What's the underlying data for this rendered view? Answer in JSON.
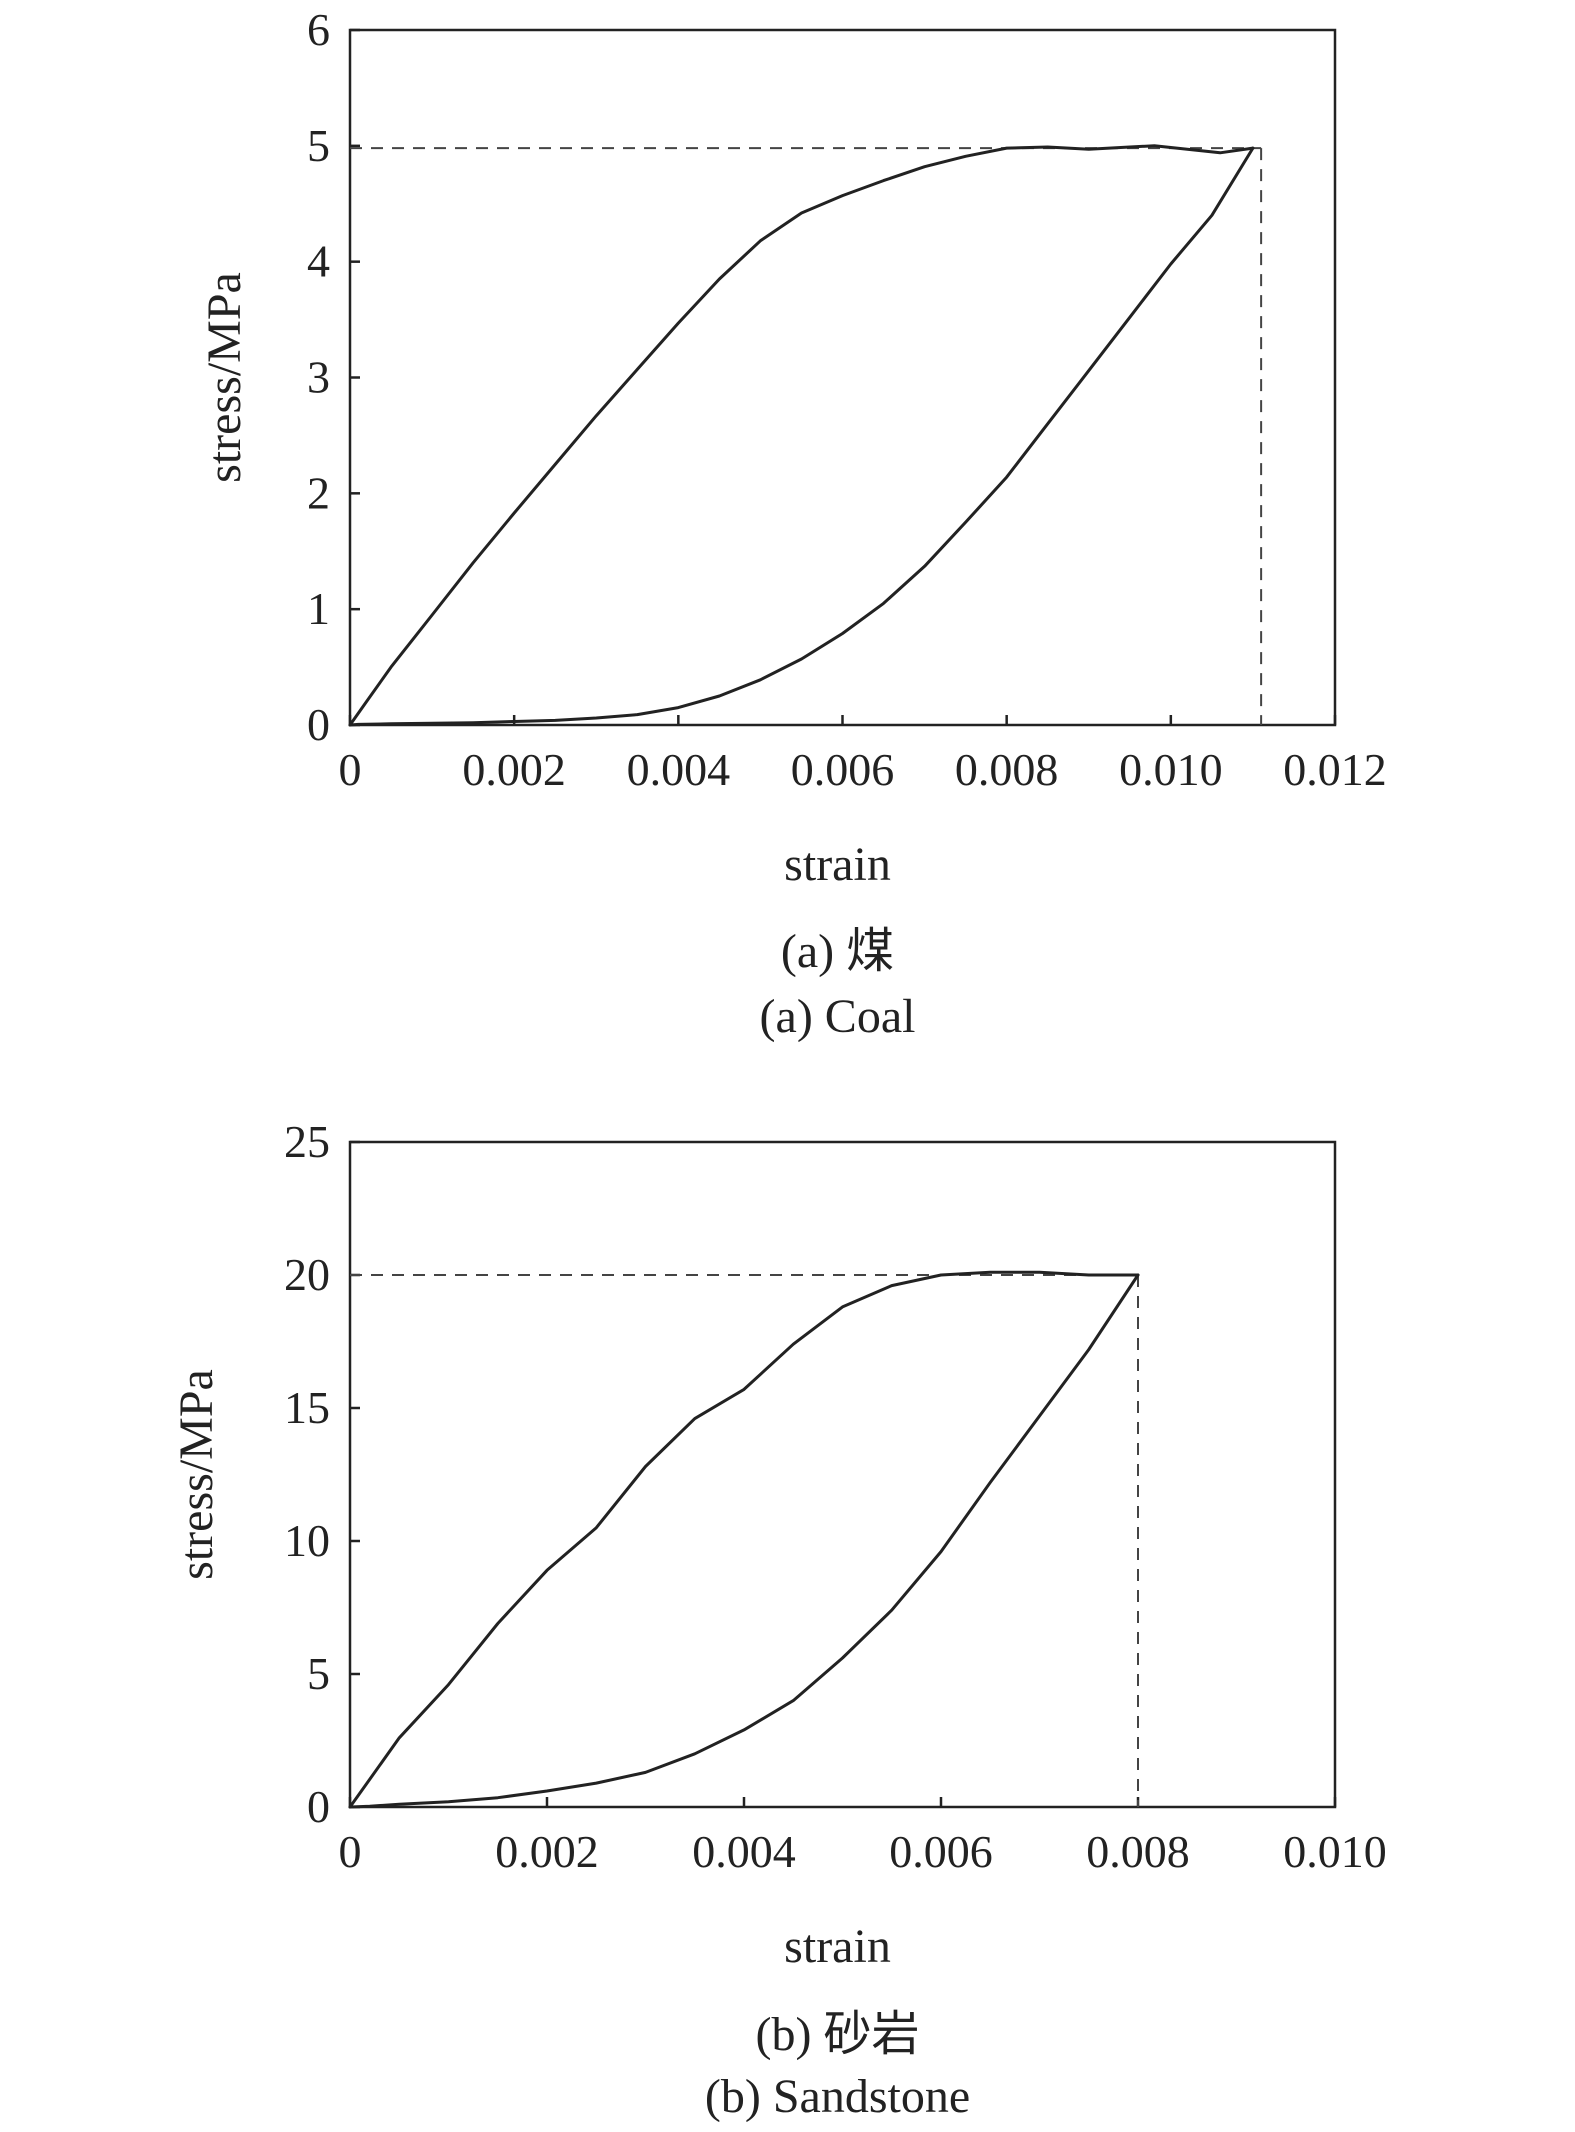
{
  "chart_data": [
    {
      "type": "line",
      "caption_cn": "(a) 煤",
      "caption_en": "(a) Coal",
      "xlabel": "strain",
      "ylabel": "stress/MPa",
      "xlim": [
        0,
        0.012
      ],
      "ylim": [
        0,
        6
      ],
      "xticks": [
        0,
        0.002,
        0.004,
        0.006,
        0.008,
        0.01,
        0.012
      ],
      "xtick_labels": [
        "0",
        "0.002",
        "0.004",
        "0.006",
        "0.008",
        "0.010",
        "0.012"
      ],
      "yticks": [
        0,
        1,
        2,
        3,
        4,
        5,
        6
      ],
      "ytick_labels": [
        "0",
        "1",
        "2",
        "3",
        "4",
        "5",
        "6"
      ],
      "grid": false,
      "peak": {
        "strain": 0.0111,
        "stress": 4.98
      },
      "series": [
        {
          "segment": "loading",
          "x": [
            0,
            0.0002,
            0.0005,
            0.001,
            0.0015,
            0.002,
            0.0025,
            0.003,
            0.0035,
            0.004,
            0.0045,
            0.005,
            0.0055,
            0.006,
            0.0065,
            0.007,
            0.0075,
            0.008,
            0.0085,
            0.009,
            0.0095,
            0.0098,
            0.0102,
            0.0106,
            0.011
          ],
          "y": [
            0,
            0.2,
            0.5,
            0.95,
            1.4,
            1.83,
            2.25,
            2.67,
            3.07,
            3.47,
            3.85,
            4.18,
            4.42,
            4.57,
            4.7,
            4.82,
            4.91,
            4.98,
            4.99,
            4.97,
            4.99,
            5.0,
            4.97,
            4.94,
            4.98
          ]
        },
        {
          "segment": "unloading",
          "x": [
            0.011,
            0.0105,
            0.01,
            0.0095,
            0.009,
            0.0085,
            0.008,
            0.0075,
            0.007,
            0.0065,
            0.006,
            0.0055,
            0.005,
            0.0045,
            0.004,
            0.0035,
            0.003,
            0.0025,
            0.002,
            0.0015,
            0.001,
            0.0005,
            0.0001,
            0
          ],
          "y": [
            4.98,
            4.4,
            3.98,
            3.52,
            3.06,
            2.6,
            2.14,
            1.75,
            1.37,
            1.05,
            0.79,
            0.57,
            0.39,
            0.25,
            0.15,
            0.09,
            0.06,
            0.04,
            0.03,
            0.02,
            0.015,
            0.01,
            0.005,
            0
          ]
        }
      ]
    },
    {
      "type": "line",
      "caption_cn": "(b) 砂岩",
      "caption_en": "(b) Sandstone",
      "xlabel": "strain",
      "ylabel": "stress/MPa",
      "xlim": [
        0,
        0.01
      ],
      "ylim": [
        0,
        25
      ],
      "xticks": [
        0,
        0.002,
        0.004,
        0.006,
        0.008,
        0.01
      ],
      "xtick_labels": [
        "0",
        "0.002",
        "0.004",
        "0.006",
        "0.008",
        "0.010"
      ],
      "yticks": [
        0,
        5,
        10,
        15,
        20,
        25
      ],
      "ytick_labels": [
        "0",
        "5",
        "10",
        "15",
        "20",
        "25"
      ],
      "grid": false,
      "peak": {
        "strain": 0.008,
        "stress": 20
      },
      "series": [
        {
          "segment": "loading",
          "x": [
            0,
            0.0005,
            0.001,
            0.0015,
            0.002,
            0.0025,
            0.003,
            0.0035,
            0.004,
            0.0045,
            0.005,
            0.0055,
            0.006,
            0.0065,
            0.007,
            0.0075,
            0.008
          ],
          "y": [
            0,
            2.6,
            4.6,
            6.9,
            8.9,
            10.5,
            12.8,
            14.6,
            15.7,
            17.4,
            18.8,
            19.6,
            20.0,
            20.1,
            20.1,
            20.0,
            20.0
          ]
        },
        {
          "segment": "unloading",
          "x": [
            0.008,
            0.0075,
            0.007,
            0.0065,
            0.006,
            0.0055,
            0.005,
            0.0045,
            0.004,
            0.0035,
            0.003,
            0.0025,
            0.002,
            0.0015,
            0.001,
            0.0005,
            0.0002,
            0
          ],
          "y": [
            20.0,
            17.2,
            14.7,
            12.2,
            9.6,
            7.4,
            5.6,
            4.0,
            2.9,
            2.0,
            1.3,
            0.9,
            0.6,
            0.35,
            0.2,
            0.1,
            0.03,
            0
          ]
        }
      ]
    }
  ]
}
